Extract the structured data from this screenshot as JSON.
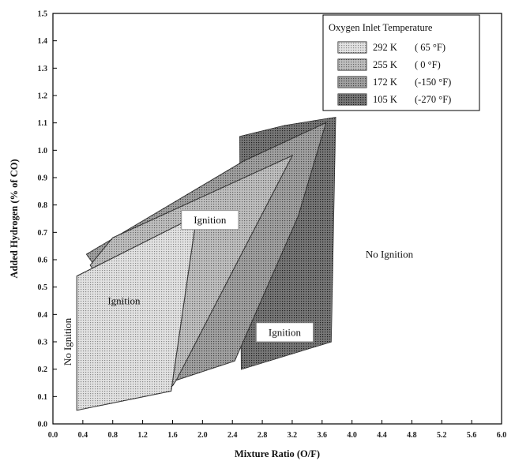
{
  "chart_data": {
    "type": "area",
    "xlabel": "Mixture Ratio (O/F)",
    "ylabel": "Added Hydrogen (% of CO)",
    "xlim": [
      0.0,
      6.0
    ],
    "ylim": [
      0.0,
      1.5
    ],
    "x_ticks": [
      "0.0",
      "0.4",
      "0.8",
      "1.2",
      "1.6",
      "2.0",
      "2.4",
      "2.8",
      "3.2",
      "3.6",
      "4.0",
      "4.4",
      "4.8",
      "5.2",
      "5.6",
      "6.0"
    ],
    "y_ticks": [
      "0.0",
      "0.1",
      "0.2",
      "0.3",
      "0.4",
      "0.5",
      "0.6",
      "0.7",
      "0.8",
      "0.9",
      "1.0",
      "1.1",
      "1.2",
      "1.3",
      "1.4",
      "1.5"
    ],
    "legend": {
      "title": "Oxygen Inlet Temperature",
      "position": "top-right"
    },
    "series": [
      {
        "name": "105 K (-270 °F)",
        "label_k": "105  K",
        "label_f": "(-270  °F)",
        "color": "#2e2e2e",
        "polygon": [
          [
            2.5,
            1.05
          ],
          [
            3.1,
            1.09
          ],
          [
            3.78,
            1.12
          ],
          [
            3.72,
            0.3
          ],
          [
            2.52,
            0.2
          ]
        ]
      },
      {
        "name": "172 K (-150 °F)",
        "label_k": "172  K",
        "label_f": "(-150  °F)",
        "color": "#6e6e6e",
        "polygon": [
          [
            0.45,
            0.62
          ],
          [
            2.55,
            0.96
          ],
          [
            3.65,
            1.1
          ],
          [
            3.28,
            0.76
          ],
          [
            2.43,
            0.23
          ],
          [
            1.65,
            0.16
          ]
        ]
      },
      {
        "name": "255 K (0 °F)",
        "label_k": "255  K",
        "label_f": "(       0  °F)",
        "color": "#9c9c9c",
        "polygon": [
          [
            0.5,
            0.58
          ],
          [
            0.8,
            0.68
          ],
          [
            3.2,
            0.98
          ],
          [
            1.65,
            0.16
          ],
          [
            1.6,
            0.14
          ]
        ]
      },
      {
        "name": "292 K (65 °F)",
        "label_k": "292  K",
        "label_f": "(    65  °F)",
        "color": "#d2d2d2",
        "polygon": [
          [
            0.32,
            0.05
          ],
          [
            1.58,
            0.12
          ],
          [
            1.92,
            0.76
          ],
          [
            0.32,
            0.54
          ]
        ]
      }
    ],
    "annotations": [
      {
        "text": "Ignition",
        "x": 2.1,
        "y": 0.745,
        "boxed": true
      },
      {
        "text": "Ignition",
        "x": 0.95,
        "y": 0.45,
        "boxed": false
      },
      {
        "text": "Ignition",
        "x": 3.1,
        "y": 0.335,
        "boxed": true
      },
      {
        "text": "No Ignition",
        "x": 4.5,
        "y": 0.62,
        "boxed": false
      },
      {
        "text": "No Ignition",
        "x": 0.2,
        "y": 0.3,
        "boxed": false,
        "rotated": true
      }
    ]
  }
}
